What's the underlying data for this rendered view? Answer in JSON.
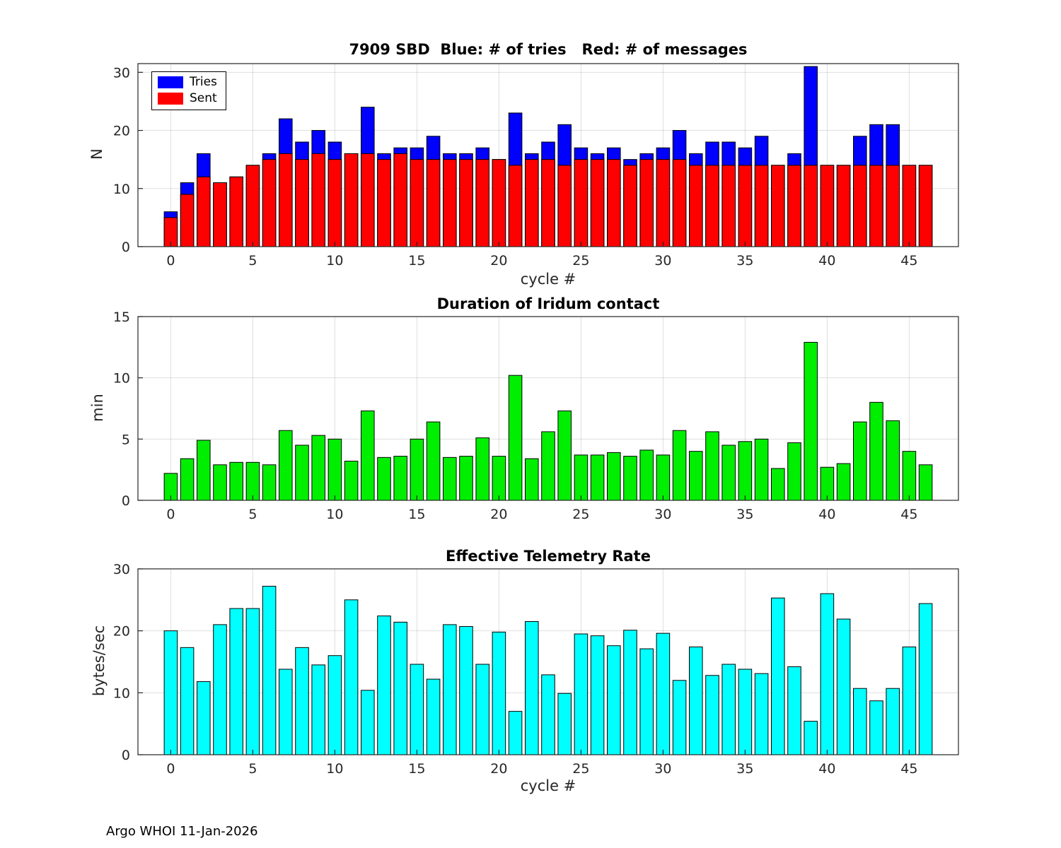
{
  "figure": {
    "footer": "Argo WHOI 11-Jan-2026"
  },
  "chart_data": [
    {
      "type": "bar",
      "bar_style": "overlaid",
      "title": "7909 SBD  Blue: # of tries   Red: # of messages",
      "xlabel": "cycle #",
      "ylabel": "N",
      "xlim": [
        -2,
        48
      ],
      "ylim": [
        0,
        31.5
      ],
      "xticks": [
        0,
        5,
        10,
        15,
        20,
        25,
        30,
        35,
        40,
        45
      ],
      "yticks": [
        0,
        10,
        20,
        30
      ],
      "grid": true,
      "legend_position": "top-left",
      "x": [
        0,
        1,
        2,
        3,
        4,
        5,
        6,
        7,
        8,
        9,
        10,
        11,
        12,
        13,
        14,
        15,
        16,
        17,
        18,
        19,
        20,
        21,
        22,
        23,
        24,
        25,
        26,
        27,
        28,
        29,
        30,
        31,
        32,
        33,
        34,
        35,
        36,
        37,
        38,
        39,
        40,
        41,
        42,
        43,
        44,
        45,
        46
      ],
      "series": [
        {
          "name": "Tries",
          "color": "#0000ff",
          "values": [
            6,
            11,
            16,
            11,
            12,
            14,
            16,
            22,
            18,
            20,
            18,
            16,
            24,
            16,
            17,
            17,
            19,
            16,
            16,
            17,
            15,
            23,
            16,
            18,
            21,
            17,
            16,
            17,
            15,
            16,
            17,
            20,
            16,
            18,
            18,
            17,
            19,
            14,
            16,
            31,
            14,
            14,
            19,
            21,
            21,
            14,
            14
          ]
        },
        {
          "name": "Sent",
          "color": "#ff0000",
          "values": [
            5,
            9,
            12,
            11,
            12,
            14,
            15,
            16,
            15,
            16,
            15,
            16,
            16,
            15,
            16,
            15,
            15,
            15,
            15,
            15,
            15,
            14,
            15,
            15,
            14,
            15,
            15,
            15,
            14,
            15,
            15,
            15,
            14,
            14,
            14,
            14,
            14,
            14,
            14,
            14,
            14,
            14,
            14,
            14,
            14,
            14,
            14
          ]
        }
      ]
    },
    {
      "type": "bar",
      "bar_style": "single",
      "title": "Duration of Iridum contact",
      "xlabel": "",
      "ylabel": "min",
      "xlim": [
        -2,
        48
      ],
      "ylim": [
        0,
        15
      ],
      "xticks": [
        0,
        5,
        10,
        15,
        20,
        25,
        30,
        35,
        40,
        45
      ],
      "yticks": [
        0,
        5,
        10,
        15
      ],
      "grid": true,
      "x": [
        0,
        1,
        2,
        3,
        4,
        5,
        6,
        7,
        8,
        9,
        10,
        11,
        12,
        13,
        14,
        15,
        16,
        17,
        18,
        19,
        20,
        21,
        22,
        23,
        24,
        25,
        26,
        27,
        28,
        29,
        30,
        31,
        32,
        33,
        34,
        35,
        36,
        37,
        38,
        39,
        40,
        41,
        42,
        43,
        44,
        45,
        46
      ],
      "series": [
        {
          "name": "Duration",
          "color": "#00ee00",
          "values": [
            2.2,
            3.4,
            4.9,
            2.9,
            3.1,
            3.1,
            2.9,
            5.7,
            4.5,
            5.3,
            5.0,
            3.2,
            7.3,
            3.5,
            3.6,
            5.0,
            6.4,
            3.5,
            3.6,
            5.1,
            3.6,
            10.2,
            3.4,
            5.6,
            7.3,
            3.7,
            3.7,
            3.9,
            3.6,
            4.1,
            3.7,
            5.7,
            4.0,
            5.6,
            4.5,
            4.8,
            5.0,
            2.6,
            4.7,
            12.9,
            2.7,
            3.0,
            6.4,
            8.0,
            6.5,
            4.0,
            2.9
          ]
        }
      ]
    },
    {
      "type": "bar",
      "bar_style": "single",
      "title": "Effective Telemetry Rate",
      "xlabel": "cycle #",
      "ylabel": "bytes/sec",
      "xlim": [
        -2,
        48
      ],
      "ylim": [
        0,
        30
      ],
      "xticks": [
        0,
        5,
        10,
        15,
        20,
        25,
        30,
        35,
        40,
        45
      ],
      "yticks": [
        0,
        10,
        20,
        30
      ],
      "grid": true,
      "x": [
        0,
        1,
        2,
        3,
        4,
        5,
        6,
        7,
        8,
        9,
        10,
        11,
        12,
        13,
        14,
        15,
        16,
        17,
        18,
        19,
        20,
        21,
        22,
        23,
        24,
        25,
        26,
        27,
        28,
        29,
        30,
        31,
        32,
        33,
        34,
        35,
        36,
        37,
        38,
        39,
        40,
        41,
        42,
        43,
        44,
        45,
        46
      ],
      "series": [
        {
          "name": "Rate",
          "color": "#00ffff",
          "values": [
            20.0,
            17.3,
            11.8,
            21.0,
            23.6,
            23.6,
            27.2,
            13.8,
            17.3,
            14.5,
            16.0,
            25.0,
            10.4,
            22.4,
            21.4,
            14.6,
            12.2,
            21.0,
            20.7,
            14.6,
            19.8,
            7.0,
            21.5,
            12.9,
            9.9,
            19.5,
            19.2,
            17.6,
            20.1,
            17.1,
            19.6,
            12.0,
            17.4,
            12.8,
            14.6,
            13.8,
            13.1,
            25.3,
            14.2,
            5.4,
            26.0,
            21.9,
            10.7,
            8.7,
            10.7,
            17.4,
            24.4
          ]
        }
      ]
    }
  ]
}
